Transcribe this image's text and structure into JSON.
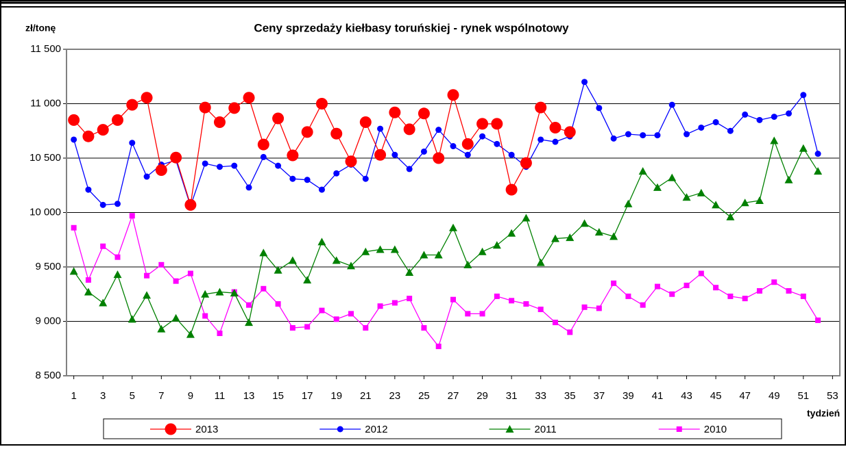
{
  "chart_data": {
    "type": "line",
    "title": "Ceny sprzedaży kiełbasy toruńskiej - rynek wspólnotowy",
    "ylabel": "zł/tonę",
    "xlabel": "tydzień",
    "x": [
      1,
      2,
      3,
      4,
      5,
      6,
      7,
      8,
      9,
      10,
      11,
      12,
      13,
      14,
      15,
      16,
      17,
      18,
      19,
      20,
      21,
      22,
      23,
      24,
      25,
      26,
      27,
      28,
      29,
      30,
      31,
      32,
      33,
      34,
      35,
      36,
      37,
      38,
      39,
      40,
      41,
      42,
      43,
      44,
      45,
      46,
      47,
      48,
      49,
      50,
      51,
      52
    ],
    "xlim": [
      0.5,
      53.5
    ],
    "xticks": [
      1,
      3,
      5,
      7,
      9,
      11,
      13,
      15,
      17,
      19,
      21,
      23,
      25,
      27,
      29,
      31,
      33,
      35,
      37,
      39,
      41,
      43,
      45,
      47,
      49,
      51,
      53
    ],
    "ylim": [
      8500,
      11500
    ],
    "yticks": [
      {
        "value": 8500,
        "label": "8 500"
      },
      {
        "value": 9000,
        "label": "9 000"
      },
      {
        "value": 9500,
        "label": "9 500"
      },
      {
        "value": 10000,
        "label": "10 000"
      },
      {
        "value": 10500,
        "label": "10 500"
      },
      {
        "value": 11000,
        "label": "11 000"
      },
      {
        "value": 11500,
        "label": "11 500"
      }
    ],
    "grid": true,
    "legend": "bottom",
    "series": [
      {
        "name": "2013",
        "color": "#ff0000",
        "marker": "circle-large",
        "values": [
          10850,
          10700,
          10760,
          10850,
          10990,
          11055,
          10390,
          10505,
          10070,
          10965,
          10830,
          10960,
          11055,
          10625,
          10865,
          10525,
          10740,
          11000,
          10725,
          10470,
          10830,
          10530,
          10920,
          10765,
          10910,
          10500,
          11080,
          10630,
          10815,
          10815,
          10210,
          10455,
          10965,
          10780,
          10740,
          null,
          null,
          null,
          null,
          null,
          null,
          null,
          null,
          null,
          null,
          null,
          null,
          null,
          null,
          null,
          null,
          null
        ]
      },
      {
        "name": "2012",
        "color": "#0000ff",
        "marker": "circle",
        "values": [
          10670,
          10210,
          10070,
          10080,
          10640,
          10330,
          10440,
          10480,
          10060,
          10450,
          10420,
          10430,
          10230,
          10510,
          10430,
          10310,
          10300,
          10210,
          10360,
          10440,
          10310,
          10770,
          10530,
          10400,
          10560,
          10760,
          10610,
          10530,
          10700,
          10630,
          10530,
          10420,
          10670,
          10650,
          10700,
          11200,
          10960,
          10680,
          10720,
          10710,
          10710,
          10990,
          10720,
          10780,
          10830,
          10750,
          10900,
          10850,
          10880,
          10910,
          11080,
          10540
        ]
      },
      {
        "name": "2011",
        "color": "#008000",
        "marker": "triangle",
        "values": [
          9460,
          9270,
          9170,
          9430,
          9020,
          9240,
          8930,
          9030,
          8880,
          9250,
          9270,
          9260,
          8990,
          9630,
          9470,
          9560,
          9380,
          9730,
          9560,
          9510,
          9640,
          9660,
          9660,
          9450,
          9610,
          9610,
          9860,
          9520,
          9640,
          9700,
          9810,
          9950,
          9540,
          9760,
          9770,
          9900,
          9820,
          9780,
          10080,
          10380,
          10230,
          10320,
          10140,
          10180,
          10070,
          9960,
          10090,
          10110,
          10660,
          10300,
          10590,
          10380
        ]
      },
      {
        "name": "2010",
        "color": "#ff00ff",
        "marker": "square",
        "values": [
          9860,
          9380,
          9690,
          9590,
          9970,
          9420,
          9520,
          9370,
          9440,
          9050,
          8890,
          9270,
          9150,
          9300,
          9160,
          8940,
          8950,
          9100,
          9020,
          9070,
          8940,
          9140,
          9170,
          9210,
          8940,
          8770,
          9200,
          9070,
          9070,
          9230,
          9190,
          9160,
          9110,
          8990,
          8900,
          9130,
          9120,
          9350,
          9230,
          9150,
          9320,
          9250,
          9330,
          9440,
          9310,
          9230,
          9210,
          9280,
          9360,
          9280,
          9230,
          9010
        ]
      }
    ]
  }
}
